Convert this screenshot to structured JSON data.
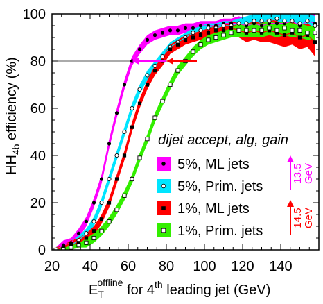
{
  "chart_data": {
    "type": "line",
    "xlabel_main": "E",
    "xlabel_sub": "T",
    "xlabel_sup": "offline",
    "xlabel_mid": " for 4",
    "xlabel_sup2": "th",
    "xlabel_end": " leading jet (GeV)",
    "ylabel_main": "HH",
    "ylabel_sub": "4b",
    "ylabel_end": " efficiency (%)",
    "xlim": [
      20,
      160
    ],
    "ylim": [
      0,
      100
    ],
    "xticks": [
      20,
      40,
      60,
      80,
      100,
      120,
      140
    ],
    "yticks": [
      0,
      20,
      40,
      60,
      80,
      100
    ],
    "xtick_labels": [
      "20",
      "40",
      "60",
      "80",
      "100",
      "120",
      "140"
    ],
    "ytick_labels": [
      "0",
      "20",
      "40",
      "60",
      "80",
      "100"
    ],
    "reference_line_y": 80,
    "legend_title": "dijet accept, alg, gain",
    "legend_placement": "center-right",
    "series": [
      {
        "name": "5%, ML jets",
        "color": "#ff00ff",
        "marker": "filled-circle",
        "x": [
          22,
          26,
          30,
          34,
          38,
          42,
          46,
          50,
          54,
          58,
          62,
          66,
          70,
          74,
          78,
          82,
          86,
          90,
          94,
          98,
          102,
          106,
          110,
          114,
          118,
          122,
          126,
          130,
          134,
          138,
          142,
          146,
          150,
          154,
          158
        ],
        "y": [
          0,
          2,
          3,
          7,
          12,
          20,
          30,
          45,
          58,
          70,
          80,
          85,
          89,
          91,
          92,
          93,
          93,
          94,
          94,
          95,
          95,
          95,
          96,
          96,
          96,
          95,
          96,
          95,
          96,
          96,
          96,
          97,
          95,
          97,
          96
        ],
        "band": [
          1,
          2,
          2,
          2,
          2,
          2,
          2,
          2,
          2,
          2,
          2,
          2,
          2,
          2,
          2,
          2,
          2,
          2,
          2,
          2,
          2,
          2,
          2,
          2,
          3,
          3,
          3,
          4,
          4,
          4,
          4,
          4,
          5,
          4,
          5
        ]
      },
      {
        "name": "5%, Prim. jets",
        "color": "#00e5ff",
        "marker": "open-circle",
        "x": [
          22,
          26,
          30,
          34,
          38,
          42,
          46,
          50,
          54,
          58,
          62,
          66,
          70,
          74,
          78,
          82,
          86,
          90,
          94,
          98,
          102,
          106,
          110,
          114,
          118,
          122,
          126,
          130,
          134,
          138,
          142,
          146,
          150,
          154,
          158
        ],
        "y": [
          0,
          1,
          2,
          4,
          7,
          12,
          20,
          30,
          40,
          50,
          60,
          68,
          74,
          78,
          82,
          86,
          88,
          90,
          92,
          93,
          94,
          94,
          95,
          95,
          96,
          96,
          97,
          97,
          97,
          98,
          97,
          97,
          96,
          97,
          95
        ],
        "band": [
          1,
          1,
          2,
          2,
          2,
          2,
          2,
          2,
          2,
          2,
          2,
          2,
          2,
          2,
          2,
          2,
          2,
          2,
          2,
          2,
          2,
          2,
          2,
          2,
          2,
          3,
          3,
          3,
          3,
          3,
          3,
          4,
          4,
          4,
          4
        ]
      },
      {
        "name": "1%, ML jets",
        "color": "#ff0000",
        "marker": "filled-square",
        "x": [
          22,
          26,
          30,
          34,
          38,
          42,
          46,
          50,
          54,
          58,
          62,
          66,
          70,
          74,
          78,
          82,
          86,
          90,
          94,
          98,
          102,
          106,
          110,
          114,
          118,
          122,
          126,
          130,
          134,
          138,
          142,
          146,
          150,
          154,
          158
        ],
        "y": [
          0,
          1,
          2,
          3,
          5,
          8,
          13,
          20,
          30,
          40,
          52,
          62,
          70,
          76,
          80,
          85,
          87,
          89,
          90,
          91,
          92,
          93,
          93,
          94,
          93,
          92,
          93,
          92,
          93,
          92,
          91,
          92,
          90,
          91,
          88
        ],
        "band": [
          1,
          1,
          2,
          2,
          2,
          2,
          2,
          2,
          2,
          2,
          2,
          2,
          2,
          2,
          2,
          2,
          2,
          2,
          2,
          2,
          2,
          2,
          2,
          3,
          3,
          4,
          4,
          4,
          5,
          5,
          5,
          5,
          5,
          5,
          6
        ]
      },
      {
        "name": "1%, Prim. jets",
        "color": "#33ee00",
        "marker": "open-square",
        "x": [
          22,
          26,
          30,
          34,
          38,
          42,
          46,
          50,
          54,
          58,
          62,
          66,
          70,
          74,
          78,
          82,
          86,
          90,
          94,
          98,
          102,
          106,
          110,
          114,
          118,
          122,
          126,
          130,
          134,
          138,
          142,
          146,
          150,
          154,
          158
        ],
        "y": [
          0,
          0,
          1,
          2,
          3,
          5,
          8,
          12,
          17,
          23,
          30,
          39,
          47,
          56,
          63,
          70,
          76,
          80,
          84,
          87,
          89,
          90,
          91,
          92,
          93,
          93,
          93,
          93,
          94,
          93,
          94,
          93,
          93,
          92,
          92
        ],
        "band": [
          1,
          1,
          1,
          1,
          2,
          2,
          2,
          2,
          2,
          2,
          2,
          2,
          2,
          2,
          2,
          2,
          2,
          2,
          2,
          2,
          2,
          2,
          2,
          2,
          3,
          3,
          3,
          3,
          3,
          3,
          3,
          3,
          3,
          3,
          3
        ]
      }
    ],
    "arrows": [
      {
        "color": "#ff00ff",
        "from_x": 80,
        "to_x": 62,
        "y": 80
      },
      {
        "color": "#ff0000",
        "from_x": 96,
        "to_x": 80,
        "y": 80
      }
    ],
    "shift_labels": [
      {
        "value": "13.5",
        "unit": "GeV",
        "color": "#ff00ff"
      },
      {
        "value": "14.5",
        "unit": "GeV",
        "color": "#ff0000"
      }
    ]
  }
}
